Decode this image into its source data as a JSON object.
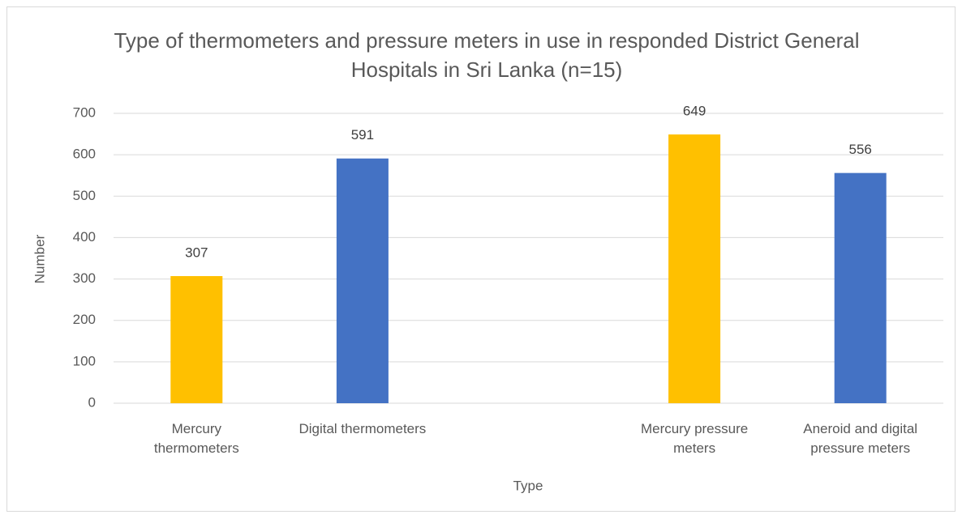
{
  "chart_data": {
    "type": "bar",
    "title": "Type of thermometers and pressure meters in use in responded District General Hospitals in Sri Lanka (n=15)",
    "x_label": "Type",
    "y_label": "Number",
    "categories": [
      "Mercury thermometers",
      "Digital thermometers",
      null,
      "Mercury pressure meters",
      "Aneroid and digital pressure meters"
    ],
    "values": [
      307,
      591,
      null,
      649,
      556
    ],
    "colors": [
      "#ffc000",
      "#4472c4",
      null,
      "#ffc000",
      "#4472c4"
    ],
    "ylim": [
      0,
      700
    ],
    "yticks": [
      0,
      100,
      200,
      300,
      400,
      500,
      600,
      700
    ],
    "grid": true
  }
}
